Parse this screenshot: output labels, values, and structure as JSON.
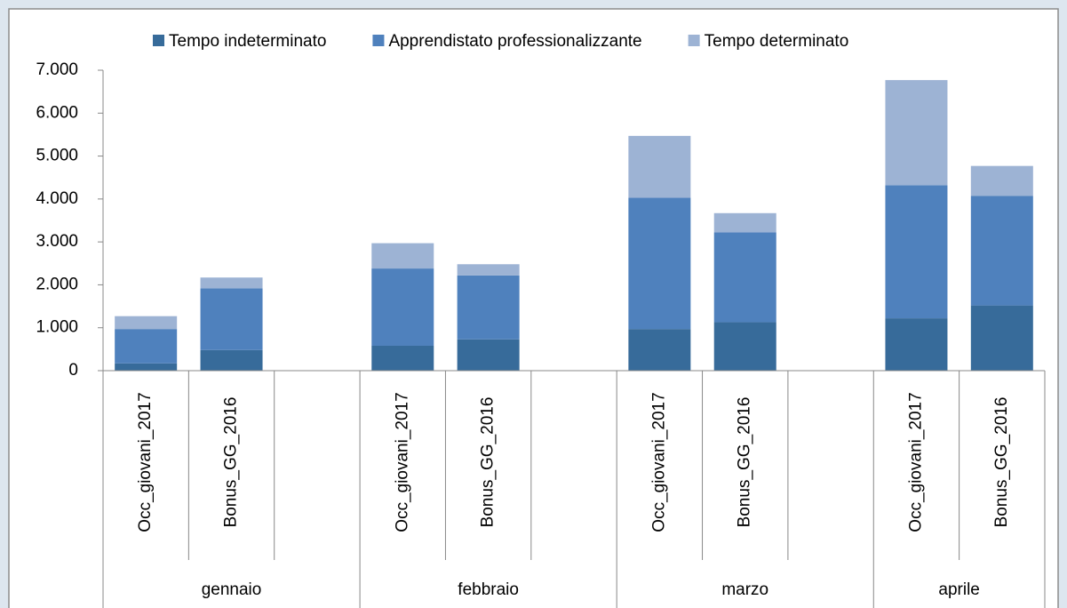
{
  "chart_data": {
    "type": "bar",
    "stacked": true,
    "categories": [
      "Occ_giovani_2017",
      "Bonus_GG_2016",
      null,
      "Occ_giovani_2017",
      "Bonus_GG_2016",
      null,
      "Occ_giovani_2017",
      "Bonus_GG_2016",
      null,
      "Occ_giovani_2017",
      "Bonus_GG_2016"
    ],
    "groups": [
      "gennaio",
      "febbraio",
      "marzo",
      "aprile"
    ],
    "series": [
      {
        "name": "Tempo indeterminato",
        "color": "#376b9a",
        "values": [
          170,
          480,
          null,
          580,
          730,
          null,
          970,
          1130,
          null,
          1220,
          1520
        ]
      },
      {
        "name": "Apprendistato professionalizzante",
        "color": "#4f81bd",
        "values": [
          800,
          1440,
          null,
          1800,
          1490,
          null,
          3060,
          2090,
          null,
          3100,
          2550
        ]
      },
      {
        "name": "Tempo determinato",
        "color": "#9db3d4",
        "values": [
          300,
          250,
          null,
          590,
          260,
          null,
          1440,
          450,
          null,
          2450,
          700
        ]
      }
    ],
    "ylim": [
      0,
      7000
    ],
    "yticks": [
      0,
      {
        "value": 1000,
        "label": "1.000"
      },
      {
        "value": 2000,
        "label": "2.000"
      },
      {
        "value": 3000,
        "label": "3.000"
      },
      {
        "value": 4000,
        "label": "4.000"
      },
      {
        "value": 5000,
        "label": "5.000"
      },
      {
        "value": 6000,
        "label": "6.000"
      },
      {
        "value": 7000,
        "label": "7.000"
      }
    ],
    "legend": "top"
  }
}
